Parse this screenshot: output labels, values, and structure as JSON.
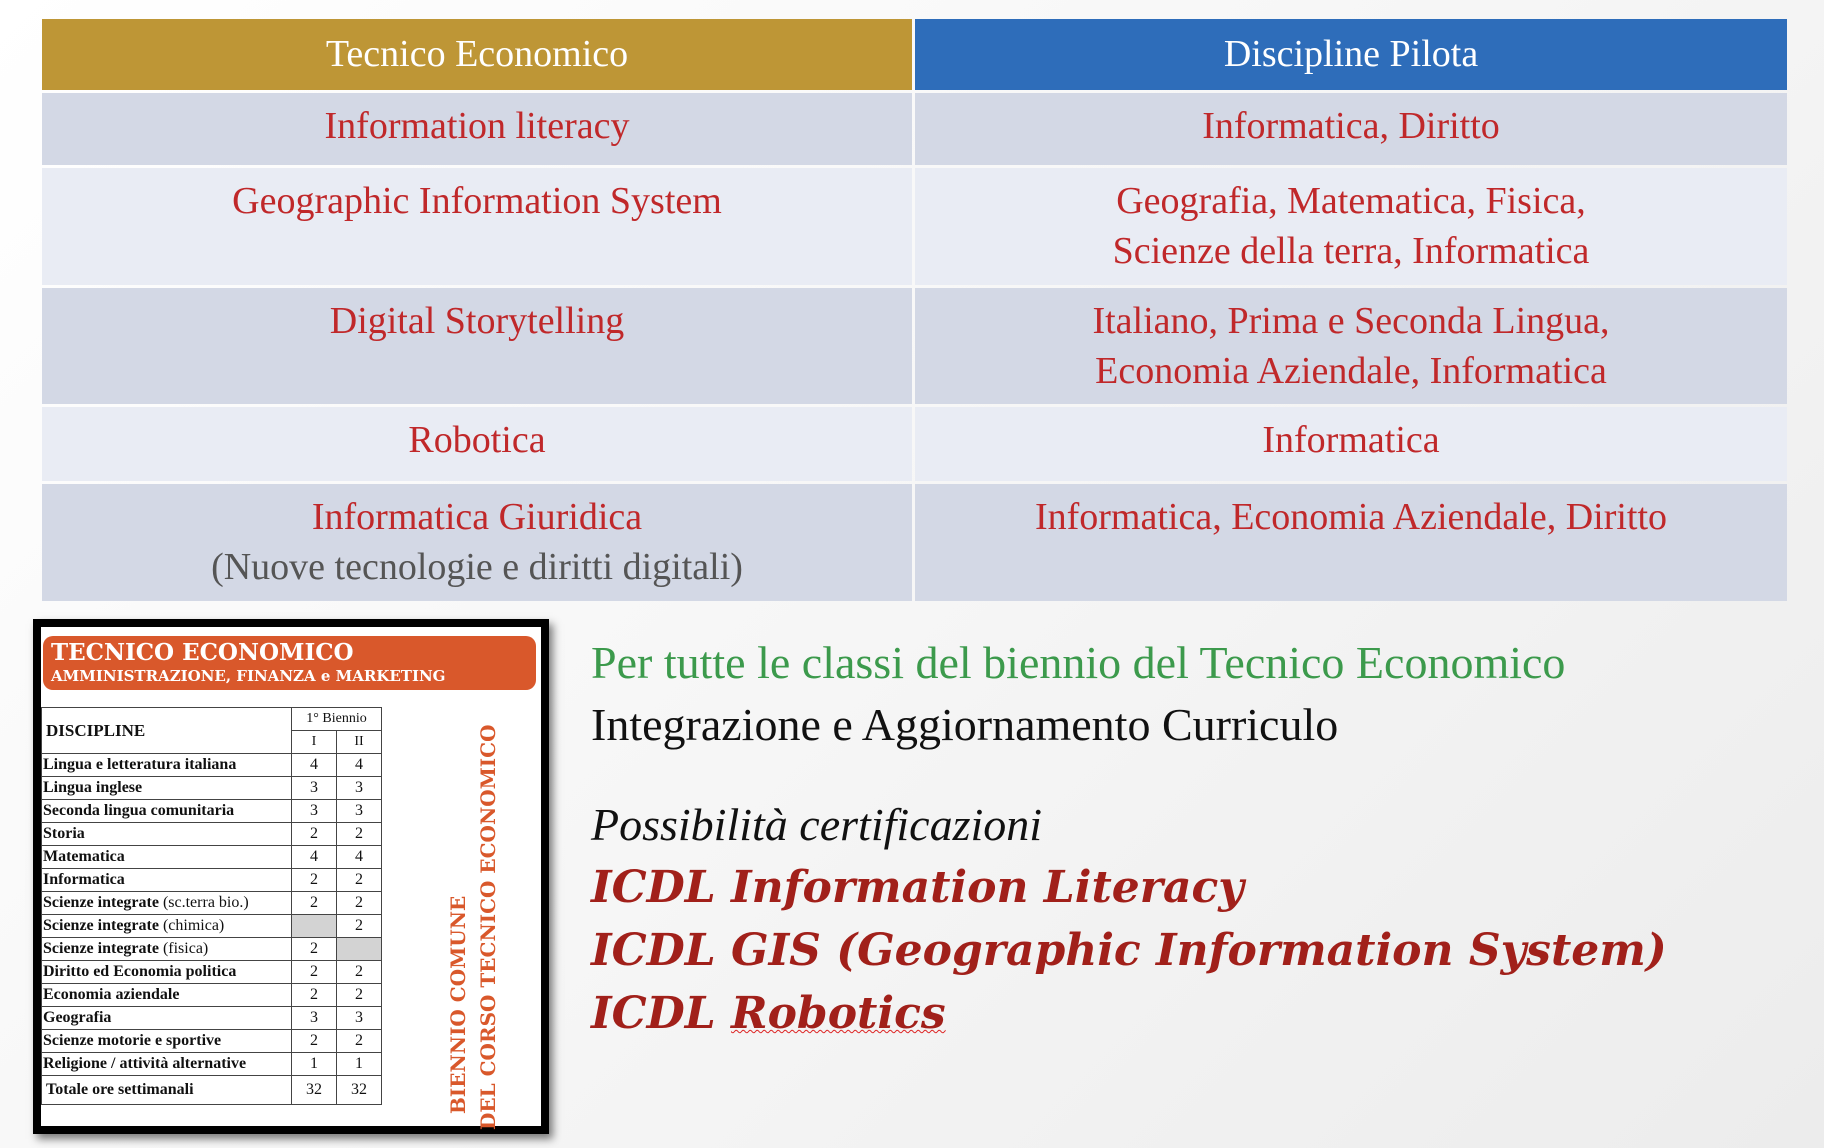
{
  "main_table": {
    "headers": [
      "Tecnico Economico",
      "Discipline Pilota"
    ],
    "header_colors": [
      "#BE9636",
      "#2E6DBA"
    ],
    "rows": [
      {
        "course": "Information literacy",
        "course_sub": "",
        "disciplines": [
          "Informatica, Diritto"
        ]
      },
      {
        "course": "Geographic Information System",
        "course_sub": "",
        "disciplines": [
          "Geografia, Matematica, Fisica,",
          "Scienze della terra, Informatica"
        ]
      },
      {
        "course": "Digital Storytelling",
        "course_sub": "",
        "disciplines": [
          "Italiano, Prima e Seconda Lingua,",
          "Economia Aziendale, Informatica"
        ]
      },
      {
        "course": "Robotica",
        "course_sub": "",
        "disciplines": [
          "Informatica"
        ]
      },
      {
        "course": "Informatica Giuridica",
        "course_sub": "(Nuove tecnologie e diritti digitali)",
        "disciplines": [
          "Informatica, Economia Aziendale, Diritto"
        ]
      }
    ]
  },
  "curriculum_box": {
    "title": "TECNICO ECONOMICO",
    "subtitle": "AMMINISTRAZIONE, FINANZA e MARKETING",
    "col_discipline": "DISCIPLINE",
    "col_group": "1° Biennio",
    "col_years": [
      "I",
      "II"
    ],
    "rows": [
      {
        "name": "Lingua e letteratura italiana",
        "note": "",
        "y1": "4",
        "y2": "4"
      },
      {
        "name": "Lingua inglese",
        "note": "",
        "y1": "3",
        "y2": "3"
      },
      {
        "name": "Seconda lingua comunitaria",
        "note": "",
        "y1": "3",
        "y2": "3"
      },
      {
        "name": "Storia",
        "note": "",
        "y1": "2",
        "y2": "2"
      },
      {
        "name": "Matematica",
        "note": "",
        "y1": "4",
        "y2": "4"
      },
      {
        "name": "Informatica",
        "note": "",
        "y1": "2",
        "y2": "2"
      },
      {
        "name": "Scienze integrate",
        "note": " (sc.terra bio.)",
        "y1": "2",
        "y2": "2"
      },
      {
        "name": "Scienze integrate",
        "note": " (chimica)",
        "y1": "",
        "y2": "2"
      },
      {
        "name": "Scienze integrate",
        "note": " (fisica)",
        "y1": "2",
        "y2": ""
      },
      {
        "name": "Diritto ed  Economia politica",
        "note": "",
        "y1": "2",
        "y2": "2"
      },
      {
        "name": "Economia aziendale",
        "note": "",
        "y1": "2",
        "y2": "2"
      },
      {
        "name": "Geografia",
        "note": "",
        "y1": "3",
        "y2": "3"
      },
      {
        "name": "Scienze motorie e sportive",
        "note": "",
        "y1": "2",
        "y2": "2"
      },
      {
        "name": "Religione / attività alternative",
        "note": "",
        "y1": "1",
        "y2": "1"
      }
    ],
    "total_label": "Totale ore settimanali",
    "total": [
      "32",
      "32"
    ],
    "vertical_lines": [
      "BIENNIO COMUNE",
      "DEL CORSO TECNICO ECONOMICO"
    ],
    "accent": "#D9582B"
  },
  "info": {
    "line1": "Per tutte le classi del biennio del Tecnico Economico",
    "line2": "Integrazione e Aggiornamento Curriculo",
    "certs_title": "Possibilità certificazioni",
    "certs": [
      "ICDL Information Literacy",
      "ICDL GIS (Geographic Information System)"
    ],
    "cert3_prefix": "ICDL ",
    "cert3_word": "Robotics"
  }
}
